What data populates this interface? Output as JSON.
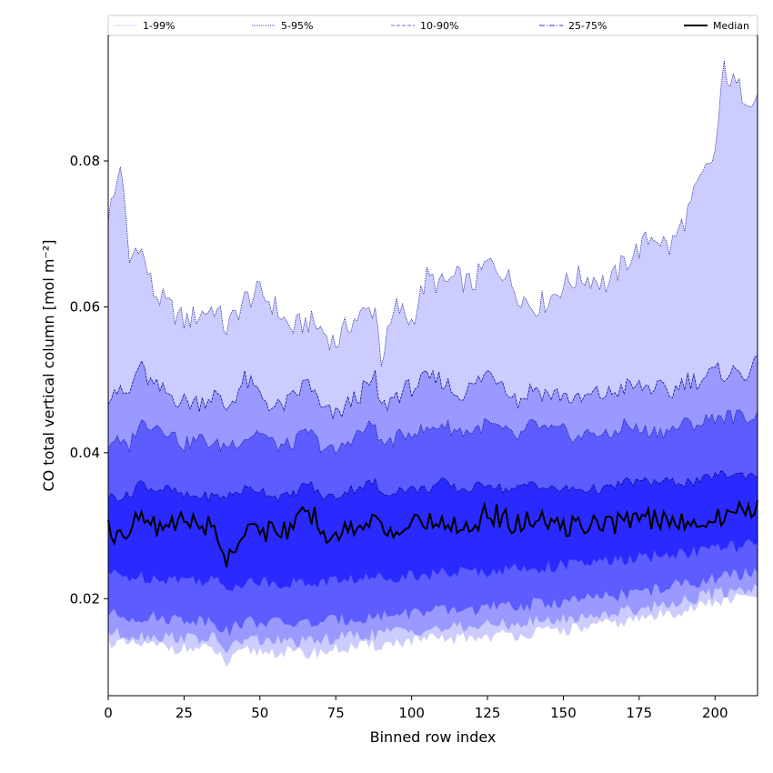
{
  "chart_data": {
    "type": "area",
    "title": "",
    "xlabel": "Binned row index",
    "ylabel": "CO total vertical column [mol m⁻²]",
    "xlim": [
      0,
      214
    ],
    "ylim": [
      0.0067,
      0.0972
    ],
    "x_ticks": [
      0,
      25,
      50,
      75,
      100,
      125,
      150,
      175,
      200
    ],
    "y_ticks": [
      0.02,
      0.04,
      0.06,
      0.08
    ],
    "x_tick_labels": [
      "0",
      "25",
      "50",
      "75",
      "100",
      "125",
      "150",
      "175",
      "200"
    ],
    "y_tick_labels": [
      "0.02",
      "0.04",
      "0.06",
      "0.08"
    ],
    "grid": false,
    "legend_position": "top",
    "legend": [
      {
        "label": "1-99%",
        "style": "dotted",
        "color": "#ccccff"
      },
      {
        "label": "5-95%",
        "style": "dotted",
        "color": "#6666ff"
      },
      {
        "label": "10-90%",
        "style": "dashed",
        "color": "#8888ff"
      },
      {
        "label": "25-75%",
        "style": "dashdot",
        "color": "#5555ee"
      },
      {
        "label": "Median",
        "style": "solid",
        "color": "#000000"
      }
    ],
    "band_colors": [
      "#ccccff",
      "#9999ff",
      "#5c5cff",
      "#2a2aff"
    ],
    "x_anchor": [
      0,
      2,
      4,
      7,
      10,
      15,
      20,
      25,
      30,
      35,
      39,
      45,
      50,
      55,
      60,
      66,
      70,
      75,
      80,
      88,
      90,
      95,
      100,
      105,
      110,
      115,
      120,
      125,
      130,
      135,
      140,
      145,
      150,
      155,
      160,
      165,
      170,
      175,
      180,
      185,
      190,
      195,
      200,
      203,
      205,
      210,
      214
    ],
    "bands": [
      {
        "name": "1-99%",
        "lower": [
          0.0142,
          0.014,
          0.0138,
          0.0136,
          0.0137,
          0.0135,
          0.0134,
          0.0132,
          0.0131,
          0.013,
          0.011,
          0.0128,
          0.0128,
          0.0127,
          0.0126,
          0.0124,
          0.0127,
          0.013,
          0.0133,
          0.0135,
          0.0137,
          0.014,
          0.0142,
          0.0143,
          0.0144,
          0.0145,
          0.0147,
          0.0148,
          0.015,
          0.0151,
          0.0153,
          0.0155,
          0.0157,
          0.0159,
          0.0162,
          0.0165,
          0.0168,
          0.0172,
          0.0176,
          0.018,
          0.0185,
          0.019,
          0.0195,
          0.0197,
          0.0198,
          0.0202,
          0.0205
        ],
        "upper": [
          0.073,
          0.075,
          0.08,
          0.066,
          0.069,
          0.062,
          0.06,
          0.058,
          0.059,
          0.06,
          0.057,
          0.061,
          0.062,
          0.06,
          0.057,
          0.058,
          0.057,
          0.055,
          0.058,
          0.06,
          0.053,
          0.06,
          0.058,
          0.064,
          0.063,
          0.064,
          0.063,
          0.066,
          0.065,
          0.062,
          0.06,
          0.061,
          0.063,
          0.064,
          0.064,
          0.063,
          0.066,
          0.068,
          0.07,
          0.068,
          0.072,
          0.077,
          0.081,
          0.093,
          0.091,
          0.089,
          0.089
        ]
      },
      {
        "name": "5-95%",
        "lower": [
          0.0155,
          0.0153,
          0.0151,
          0.015,
          0.015,
          0.0149,
          0.0148,
          0.0147,
          0.0146,
          0.0145,
          0.013,
          0.0144,
          0.0143,
          0.0142,
          0.0141,
          0.014,
          0.0143,
          0.0146,
          0.0149,
          0.0151,
          0.0153,
          0.0155,
          0.0157,
          0.0158,
          0.0159,
          0.016,
          0.0162,
          0.0163,
          0.0165,
          0.0166,
          0.0168,
          0.017,
          0.0172,
          0.0174,
          0.0177,
          0.018,
          0.0183,
          0.0186,
          0.019,
          0.0194,
          0.0198,
          0.0203,
          0.0207,
          0.0209,
          0.021,
          0.0213,
          0.0215
        ],
        "upper": [
          0.048,
          0.049,
          0.048,
          0.048,
          0.052,
          0.049,
          0.048,
          0.047,
          0.047,
          0.048,
          0.046,
          0.05,
          0.048,
          0.046,
          0.047,
          0.05,
          0.046,
          0.045,
          0.047,
          0.05,
          0.046,
          0.048,
          0.049,
          0.05,
          0.05,
          0.048,
          0.049,
          0.051,
          0.05,
          0.047,
          0.049,
          0.048,
          0.048,
          0.047,
          0.048,
          0.048,
          0.049,
          0.049,
          0.049,
          0.048,
          0.05,
          0.05,
          0.051,
          0.051,
          0.051,
          0.051,
          0.052
        ]
      },
      {
        "name": "10-90%",
        "lower": [
          0.018,
          0.0178,
          0.0176,
          0.0175,
          0.0175,
          0.0174,
          0.0173,
          0.0172,
          0.0171,
          0.017,
          0.0155,
          0.0169,
          0.0168,
          0.0167,
          0.0166,
          0.0166,
          0.0168,
          0.017,
          0.0173,
          0.0175,
          0.0177,
          0.0179,
          0.0181,
          0.0182,
          0.0183,
          0.0184,
          0.0186,
          0.0187,
          0.0188,
          0.019,
          0.0192,
          0.0194,
          0.0196,
          0.0198,
          0.02,
          0.0203,
          0.0206,
          0.0209,
          0.0212,
          0.0216,
          0.022,
          0.0224,
          0.0228,
          0.023,
          0.0231,
          0.0234,
          0.0236
        ],
        "upper": [
          0.041,
          0.042,
          0.041,
          0.041,
          0.044,
          0.044,
          0.043,
          0.041,
          0.042,
          0.041,
          0.041,
          0.042,
          0.043,
          0.041,
          0.041,
          0.043,
          0.041,
          0.04,
          0.042,
          0.044,
          0.041,
          0.042,
          0.043,
          0.043,
          0.044,
          0.043,
          0.043,
          0.044,
          0.043,
          0.042,
          0.044,
          0.043,
          0.043,
          0.042,
          0.043,
          0.042,
          0.044,
          0.043,
          0.043,
          0.043,
          0.044,
          0.044,
          0.045,
          0.045,
          0.045,
          0.045,
          0.045
        ]
      },
      {
        "name": "25-75%",
        "lower": [
          0.0235,
          0.0233,
          0.0231,
          0.023,
          0.023,
          0.0229,
          0.0228,
          0.0227,
          0.0226,
          0.0225,
          0.0215,
          0.0224,
          0.0223,
          0.0222,
          0.0222,
          0.0221,
          0.0223,
          0.0225,
          0.0227,
          0.0228,
          0.023,
          0.0231,
          0.0233,
          0.0234,
          0.0235,
          0.0236,
          0.0237,
          0.0238,
          0.024,
          0.0241,
          0.0242,
          0.0244,
          0.0246,
          0.0247,
          0.0249,
          0.0251,
          0.0253,
          0.0255,
          0.0258,
          0.026,
          0.0263,
          0.0266,
          0.0269,
          0.027,
          0.0271,
          0.0273,
          0.0275
        ],
        "upper": [
          0.034,
          0.034,
          0.034,
          0.034,
          0.036,
          0.035,
          0.035,
          0.034,
          0.034,
          0.034,
          0.034,
          0.035,
          0.035,
          0.034,
          0.034,
          0.036,
          0.034,
          0.034,
          0.035,
          0.036,
          0.034,
          0.035,
          0.035,
          0.035,
          0.036,
          0.035,
          0.035,
          0.036,
          0.035,
          0.035,
          0.036,
          0.035,
          0.035,
          0.035,
          0.035,
          0.035,
          0.036,
          0.036,
          0.036,
          0.036,
          0.036,
          0.036,
          0.037,
          0.037,
          0.037,
          0.037,
          0.037
        ]
      }
    ],
    "median": [
      0.0295,
      0.029,
      0.03,
      0.029,
      0.031,
      0.03,
      0.03,
      0.031,
      0.03,
      0.03,
      0.025,
      0.03,
      0.029,
      0.03,
      0.029,
      0.032,
      0.03,
      0.028,
      0.03,
      0.031,
      0.029,
      0.03,
      0.03,
      0.03,
      0.031,
      0.03,
      0.03,
      0.032,
      0.031,
      0.03,
      0.031,
      0.03,
      0.03,
      0.03,
      0.03,
      0.03,
      0.031,
      0.031,
      0.031,
      0.03,
      0.031,
      0.031,
      0.031,
      0.031,
      0.032,
      0.032,
      0.033
    ]
  }
}
